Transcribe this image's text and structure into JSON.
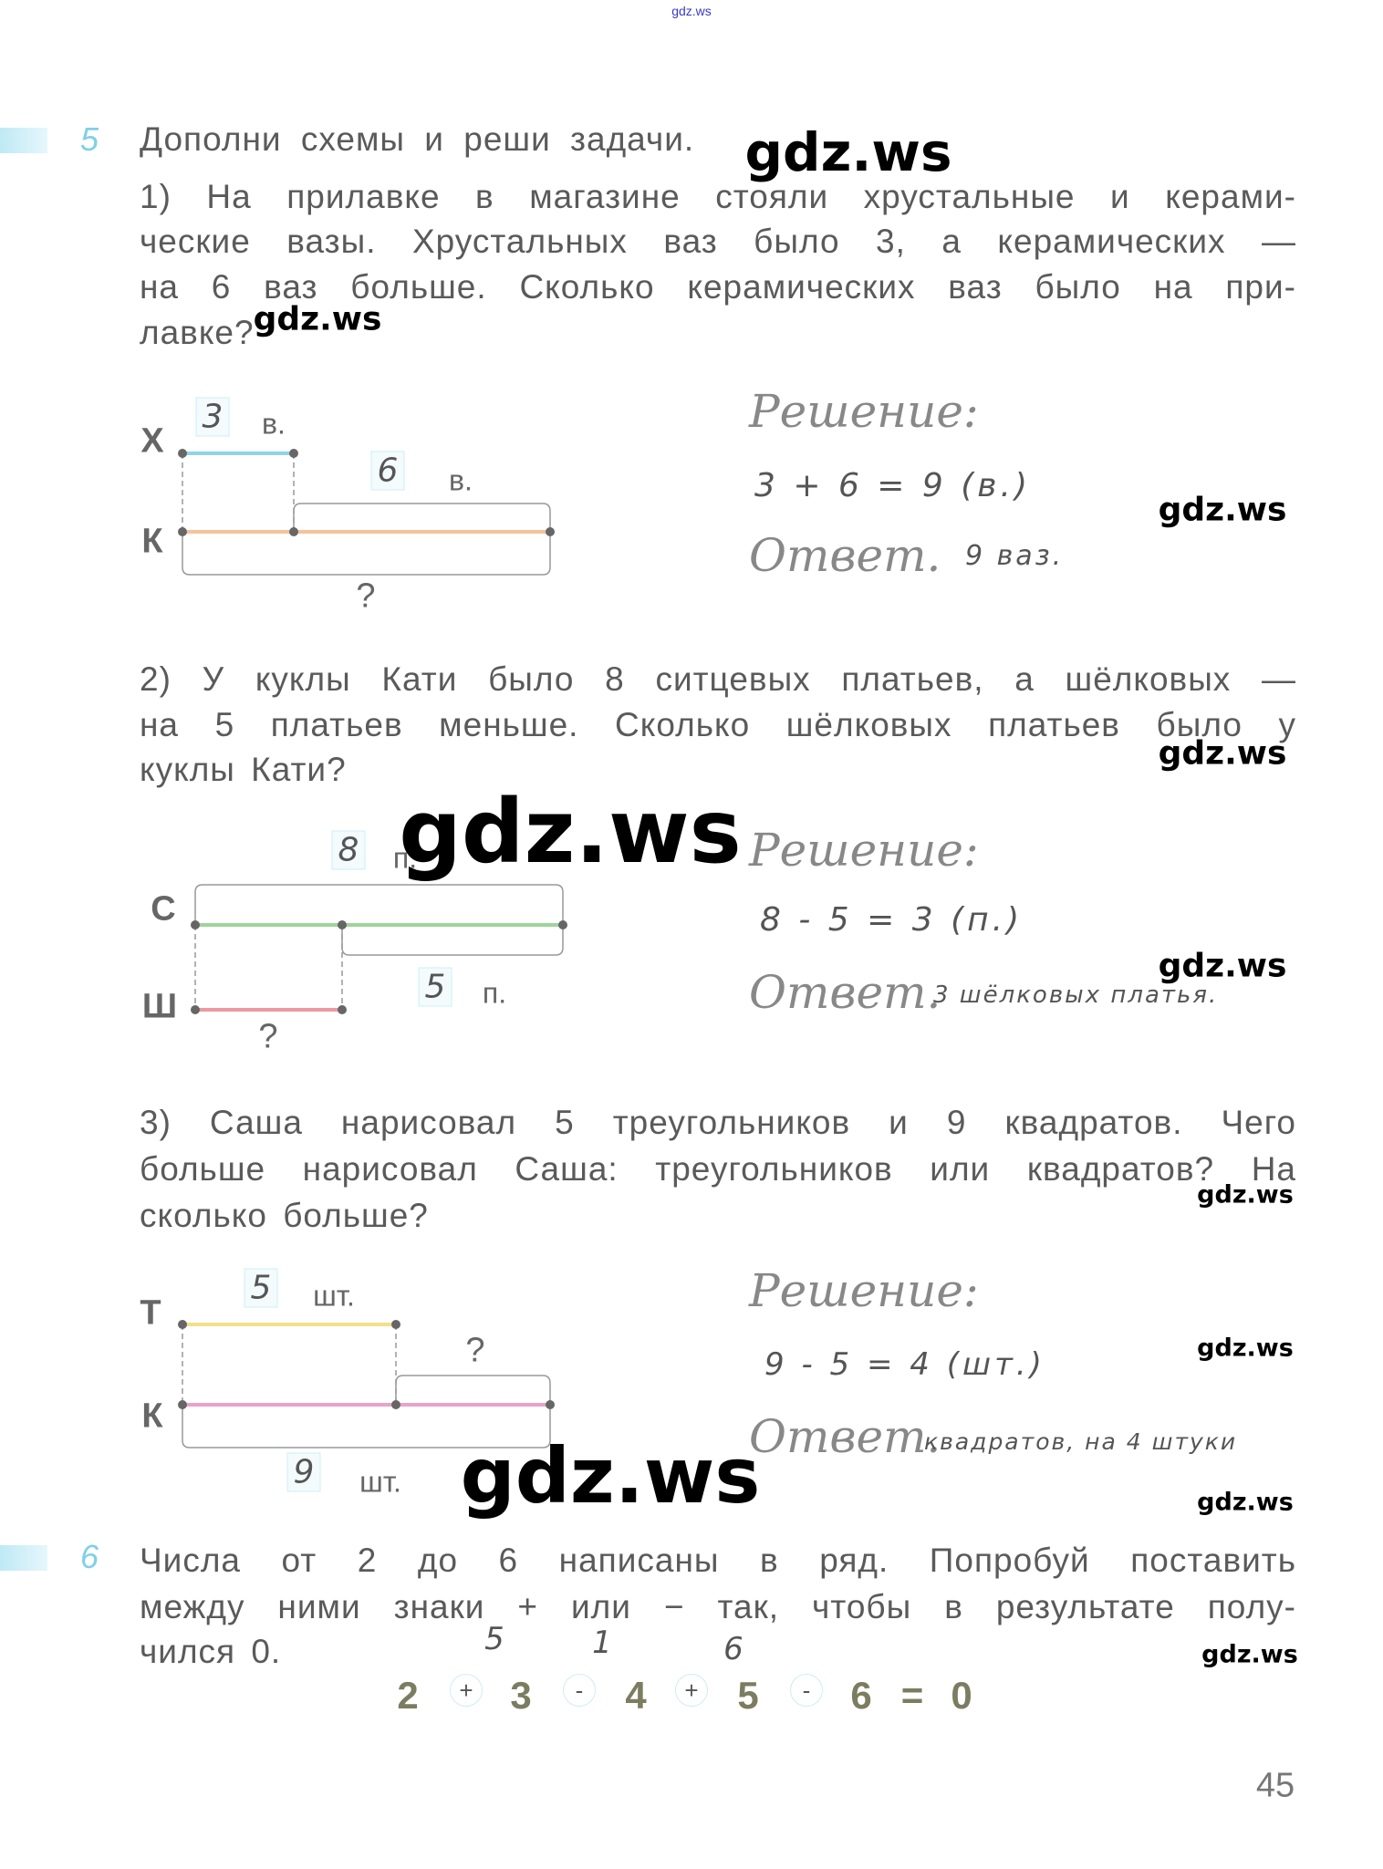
{
  "watermark": "gdz.ws",
  "task5": {
    "number": "5",
    "title": "Дополни схемы и реши задачи.",
    "p1": {
      "lines": [
        "1) На прилавке в магазине стояли хрустальные и керами-",
        "ческие вазы. Хрустальных ваз было 3, а керамических —",
        "на 6 ваз больше. Сколько керамических ваз было на при-",
        "лавке?"
      ],
      "diagram": {
        "top_label": "Х",
        "bottom_label": "К",
        "top_value": "3",
        "top_unit": "в.",
        "diff_value": "6",
        "diff_unit": "в.",
        "question": "?",
        "colors": {
          "top": "#8fd4e6",
          "bottom": "#f3c39a"
        }
      },
      "solution_label": "Решение:",
      "solution": "3 + 6 = 9 (в.)",
      "answer_label": "Ответ.",
      "answer": "9 ваз."
    },
    "p2": {
      "lines": [
        "2) У куклы Кати было 8 ситцевых платьев, а шёлковых —",
        "на 5 платьев меньше. Сколько шёлковых платьев было у",
        "куклы Кати?"
      ],
      "diagram": {
        "top_label": "С",
        "bottom_label": "Ш",
        "top_value": "8",
        "top_unit": "п.",
        "diff_value": "5",
        "diff_unit": "п.",
        "question": "?",
        "colors": {
          "top": "#9ed49a",
          "bottom": "#e99aa0"
        }
      },
      "solution_label": "Решение:",
      "solution": "8 - 5 = 3 (п.)",
      "answer_label": "Ответ.",
      "answer": "3 шёлковых платья."
    },
    "p3": {
      "lines": [
        "3) Саша нарисовал 5 треугольников и 9 квадратов. Чего",
        "больше нарисовал Саша: треугольников или квадратов? На",
        "сколько больше?"
      ],
      "diagram": {
        "top_label": "Т",
        "bottom_label": "К",
        "top_value": "5",
        "top_unit": "шт.",
        "bottom_value": "9",
        "bottom_unit": "шт.",
        "question": "?",
        "colors": {
          "top": "#f3df8a",
          "bottom": "#e7a3c9"
        }
      },
      "solution_label": "Решение:",
      "solution": "9 - 5 = 4 (шт.)",
      "answer_label": "Ответ.",
      "answer": "квадратов, на 4 штуки"
    }
  },
  "task6": {
    "number": "6",
    "lines": [
      "Числа от 2 до 6 написаны в ряд. Попробуй поставить",
      "между ними знаки + или − так, чтобы в результате полу-",
      "чился 0."
    ],
    "notes": [
      "5",
      "1",
      "6"
    ],
    "equation": {
      "numbers": [
        "2",
        "3",
        "4",
        "5",
        "6"
      ],
      "signs": [
        "+",
        "-",
        "+",
        "-"
      ],
      "equals": "=",
      "result": "0"
    }
  },
  "page_number": "45"
}
